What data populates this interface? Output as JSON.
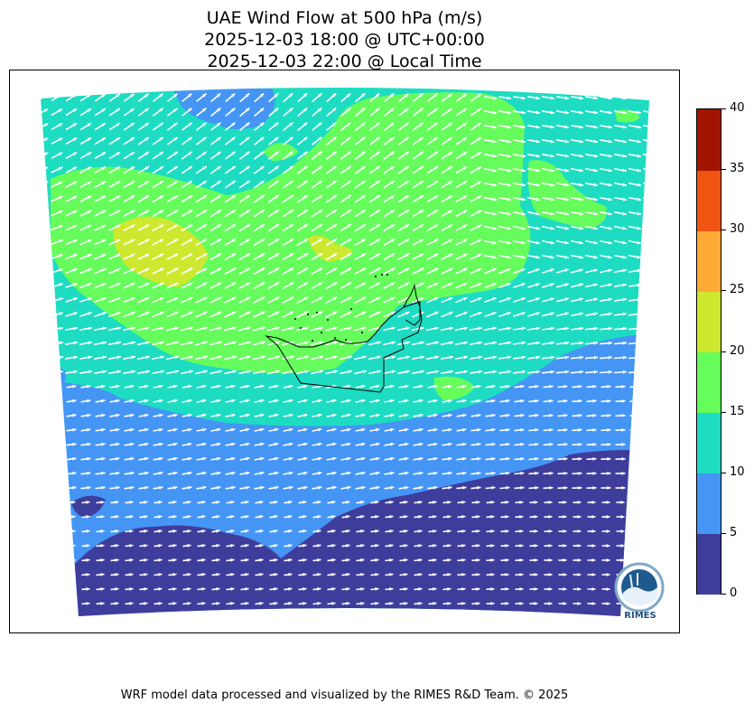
{
  "title": {
    "line1": "UAE Wind Flow at 500 hPa (m/s)",
    "line2": "2025-12-03 18:00 @ UTC+00:00",
    "line3": "2025-12-03 22:00 @ Local Time"
  },
  "colorbar": {
    "ticks": [
      "0",
      "5",
      "10",
      "15",
      "20",
      "25",
      "30",
      "35",
      "40"
    ],
    "bins": [
      {
        "min": 0,
        "max": 5,
        "color": "#3e3d9c"
      },
      {
        "min": 5,
        "max": 10,
        "color": "#4595f5"
      },
      {
        "min": 10,
        "max": 15,
        "color": "#1ddcc2"
      },
      {
        "min": 15,
        "max": 20,
        "color": "#66fc5c"
      },
      {
        "min": 20,
        "max": 25,
        "color": "#cde82f"
      },
      {
        "min": 25,
        "max": 30,
        "color": "#fdab36"
      },
      {
        "min": 30,
        "max": 35,
        "color": "#ef5411"
      },
      {
        "min": 35,
        "max": 40,
        "color": "#a21402"
      }
    ]
  },
  "map": {
    "region": "UAE",
    "level": "500 hPa",
    "variable": "wind speed (m/s)",
    "vector_color": "#ffffff",
    "outline_color": "#000000"
  },
  "logo": {
    "text": "RIMES"
  },
  "footer": "WRF model data processed and visualized by the RIMES R&D Team. © 2025"
}
